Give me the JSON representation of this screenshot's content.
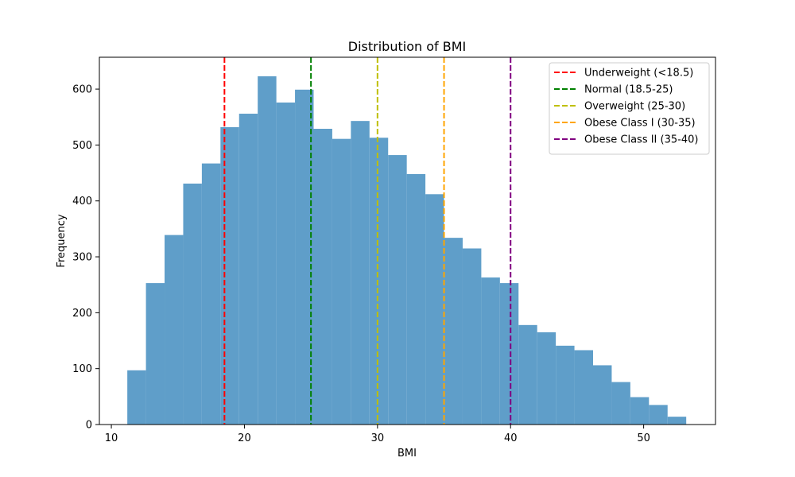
{
  "chart_data": {
    "type": "bar",
    "title": "Distribution of BMI",
    "xlabel": "BMI",
    "ylabel": "Frequency",
    "xlim": [
      9.1,
      55.4
    ],
    "ylim": [
      0,
      657
    ],
    "xticks": [
      10,
      20,
      30,
      40,
      50
    ],
    "yticks": [
      0,
      100,
      200,
      300,
      400,
      500,
      600
    ],
    "bar_color": "#5f9ec9",
    "bins": [
      {
        "left": 11.2,
        "right": 12.6,
        "value": 97
      },
      {
        "left": 12.6,
        "right": 14.0,
        "value": 253
      },
      {
        "left": 14.0,
        "right": 15.4,
        "value": 339
      },
      {
        "left": 15.4,
        "right": 16.8,
        "value": 431
      },
      {
        "left": 16.8,
        "right": 18.2,
        "value": 467
      },
      {
        "left": 18.2,
        "right": 19.6,
        "value": 532
      },
      {
        "left": 19.6,
        "right": 21.0,
        "value": 556
      },
      {
        "left": 21.0,
        "right": 22.4,
        "value": 623
      },
      {
        "left": 22.4,
        "right": 23.8,
        "value": 576
      },
      {
        "left": 23.8,
        "right": 25.2,
        "value": 599
      },
      {
        "left": 25.2,
        "right": 26.6,
        "value": 529
      },
      {
        "left": 26.6,
        "right": 28.0,
        "value": 511
      },
      {
        "left": 28.0,
        "right": 29.4,
        "value": 543
      },
      {
        "left": 29.4,
        "right": 30.8,
        "value": 513
      },
      {
        "left": 30.8,
        "right": 32.2,
        "value": 482
      },
      {
        "left": 32.2,
        "right": 33.6,
        "value": 448
      },
      {
        "left": 33.6,
        "right": 35.0,
        "value": 412
      },
      {
        "left": 35.0,
        "right": 36.4,
        "value": 334
      },
      {
        "left": 36.4,
        "right": 37.8,
        "value": 315
      },
      {
        "left": 37.8,
        "right": 39.2,
        "value": 263
      },
      {
        "left": 39.2,
        "right": 40.6,
        "value": 253
      },
      {
        "left": 40.6,
        "right": 42.0,
        "value": 178
      },
      {
        "left": 42.0,
        "right": 43.4,
        "value": 165
      },
      {
        "left": 43.4,
        "right": 44.8,
        "value": 141
      },
      {
        "left": 44.8,
        "right": 46.2,
        "value": 133
      },
      {
        "left": 46.2,
        "right": 47.6,
        "value": 106
      },
      {
        "left": 47.6,
        "right": 49.0,
        "value": 76
      },
      {
        "left": 49.0,
        "right": 50.4,
        "value": 49
      },
      {
        "left": 50.4,
        "right": 51.8,
        "value": 35
      },
      {
        "left": 51.8,
        "right": 53.2,
        "value": 14
      }
    ],
    "reference_lines": [
      {
        "x": 18.5,
        "label": "Underweight (<18.5)",
        "color": "#ff0000",
        "style": "dashed"
      },
      {
        "x": 25,
        "label": "Normal (18.5-25)",
        "color": "#008000",
        "style": "dashed"
      },
      {
        "x": 30,
        "label": "Overweight (25-30)",
        "color": "#bfbf00",
        "style": "dashed"
      },
      {
        "x": 35,
        "label": "Obese Class I (30-35)",
        "color": "#ffa500",
        "style": "dashed"
      },
      {
        "x": 40,
        "label": "Obese Class II (35-40)",
        "color": "#800080",
        "style": "dashed"
      }
    ],
    "legend_position": "top-right",
    "grid": false
  }
}
